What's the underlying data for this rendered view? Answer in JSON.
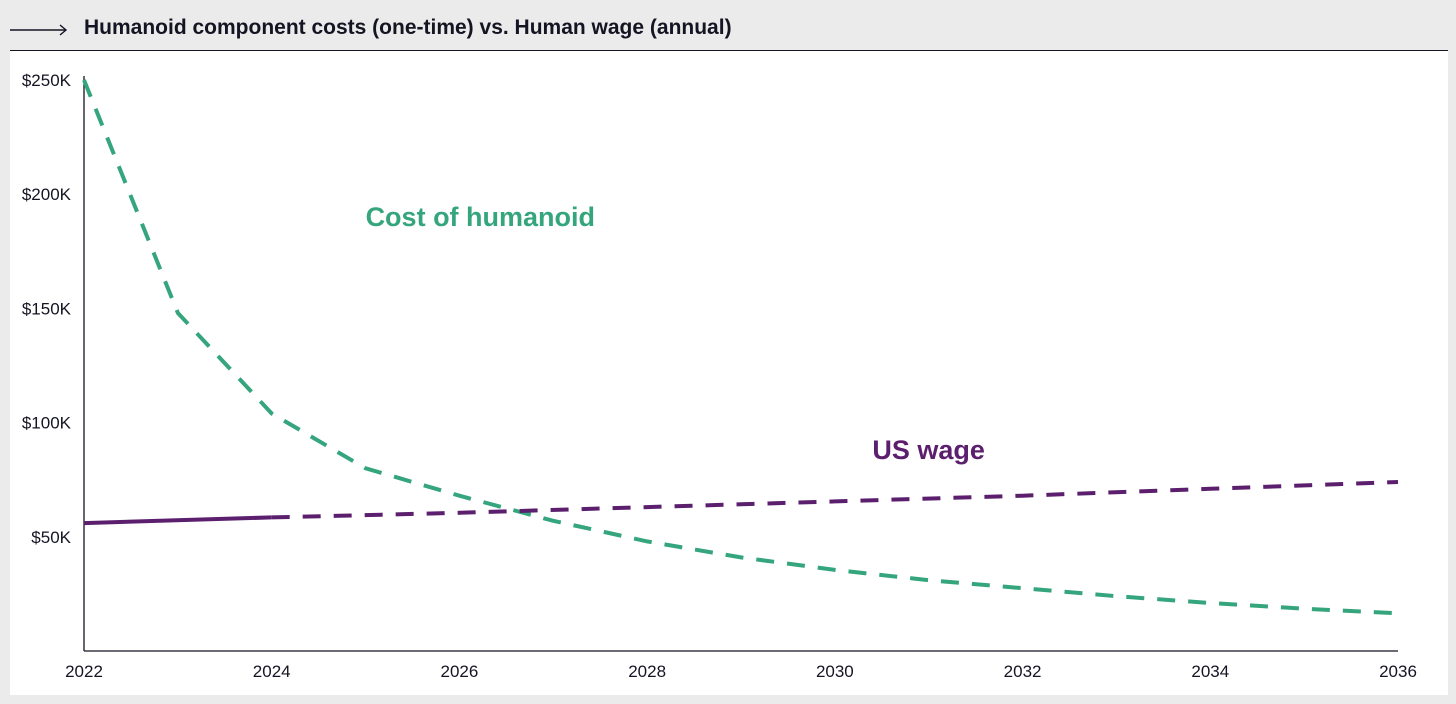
{
  "header": {
    "title": "Humanoid component costs (one-time) vs. Human wage (annual)",
    "arrow_icon": "long-right-arrow"
  },
  "chart_data": {
    "type": "line",
    "title": "Humanoid component costs (one-time) vs. Human wage (annual)",
    "xlabel": "",
    "ylabel": "",
    "xlim": [
      2022,
      2036
    ],
    "ylim": [
      0,
      250000
    ],
    "x_ticks": [
      2022,
      2024,
      2026,
      2028,
      2030,
      2032,
      2034,
      2036
    ],
    "x_tick_labels": [
      "2022",
      "2024",
      "2026",
      "2028",
      "2030",
      "2032",
      "2034",
      "2036"
    ],
    "y_ticks": [
      50000,
      100000,
      150000,
      200000,
      250000
    ],
    "y_tick_labels": [
      "$50K",
      "$100K",
      "$150K",
      "$200K",
      "$250K"
    ],
    "grid": false,
    "legend": "none (inline series labels)",
    "series": [
      {
        "name": "Cost of humanoid",
        "color": "#34a57c",
        "style": "dashed",
        "label_position": {
          "x": 2025,
          "y": 186000
        },
        "points": [
          [
            2022,
            250000
          ],
          [
            2023,
            148000
          ],
          [
            2024,
            104000
          ],
          [
            2025,
            80000
          ],
          [
            2026,
            68000
          ],
          [
            2027,
            57000
          ],
          [
            2028,
            48000
          ],
          [
            2029,
            41000
          ],
          [
            2030,
            35500
          ],
          [
            2031,
            31000
          ],
          [
            2032,
            27500
          ],
          [
            2033,
            24000
          ],
          [
            2034,
            21000
          ],
          [
            2035,
            18500
          ],
          [
            2036,
            16500
          ]
        ]
      },
      {
        "name": "US wage",
        "color": "#5b1f6e",
        "style": "solid-then-dashed",
        "solid_until": 2024,
        "label_position": {
          "x": 2030.4,
          "y": 84000
        },
        "points": [
          [
            2022,
            56000
          ],
          [
            2024,
            58500
          ],
          [
            2026,
            60500
          ],
          [
            2028,
            63000
          ],
          [
            2030,
            65500
          ],
          [
            2032,
            68000
          ],
          [
            2034,
            71000
          ],
          [
            2036,
            74000
          ]
        ]
      }
    ]
  }
}
